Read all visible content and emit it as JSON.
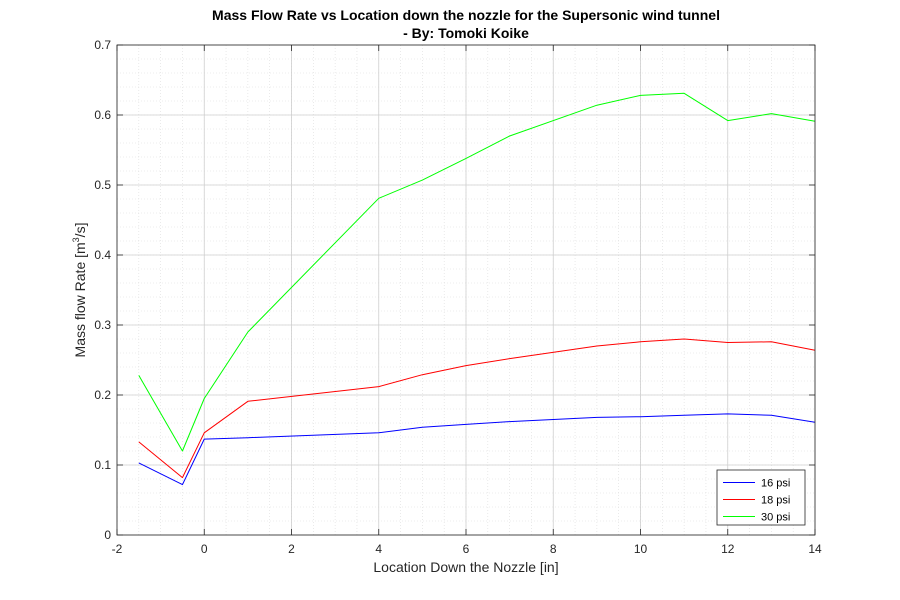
{
  "chart_data": {
    "type": "line",
    "title": "Mass Flow Rate vs Location down the nozzle for the Supersonic wind tunnel",
    "subtitle": "- By: Tomoki Koike",
    "xlabel": "Location Down the Nozzle [in]",
    "ylabel_prefix": "Mass flow Rate [m",
    "ylabel_sup": "3",
    "ylabel_suffix": "/s]",
    "xlim": [
      -2,
      14
    ],
    "ylim": [
      0,
      0.7
    ],
    "xticks": [
      -2,
      0,
      2,
      4,
      6,
      8,
      10,
      12,
      14
    ],
    "xtick_labels": [
      "-2",
      "0",
      "2",
      "4",
      "6",
      "8",
      "10",
      "12",
      "14"
    ],
    "yticks": [
      0,
      0.1,
      0.2,
      0.3,
      0.4,
      0.5,
      0.6,
      0.7
    ],
    "ytick_labels": [
      "0",
      "0.1",
      "0.2",
      "0.3",
      "0.4",
      "0.5",
      "0.6",
      "0.7"
    ],
    "grid": true,
    "minor_grid": true,
    "legend_position": "bottom-right",
    "x": [
      -1.5,
      -0.5,
      0,
      1,
      4,
      5,
      6,
      7,
      9,
      10,
      11,
      12,
      13,
      14
    ],
    "series": [
      {
        "name": "16 psi",
        "color": "#0000ff",
        "values": [
          0.103,
          0.072,
          0.137,
          0.139,
          0.146,
          0.154,
          0.158,
          0.162,
          0.168,
          0.169,
          0.171,
          0.173,
          0.171,
          0.161
        ]
      },
      {
        "name": "18 psi",
        "color": "#ff0000",
        "values": [
          0.133,
          0.082,
          0.146,
          0.191,
          0.212,
          0.229,
          0.242,
          0.252,
          0.27,
          0.276,
          0.28,
          0.275,
          0.276,
          0.264
        ]
      },
      {
        "name": "30 psi",
        "color": "#00ff00",
        "values": [
          0.228,
          0.12,
          0.195,
          0.29,
          0.481,
          0.507,
          0.538,
          0.57,
          0.614,
          0.628,
          0.631,
          0.592,
          0.602,
          0.591
        ]
      }
    ]
  }
}
